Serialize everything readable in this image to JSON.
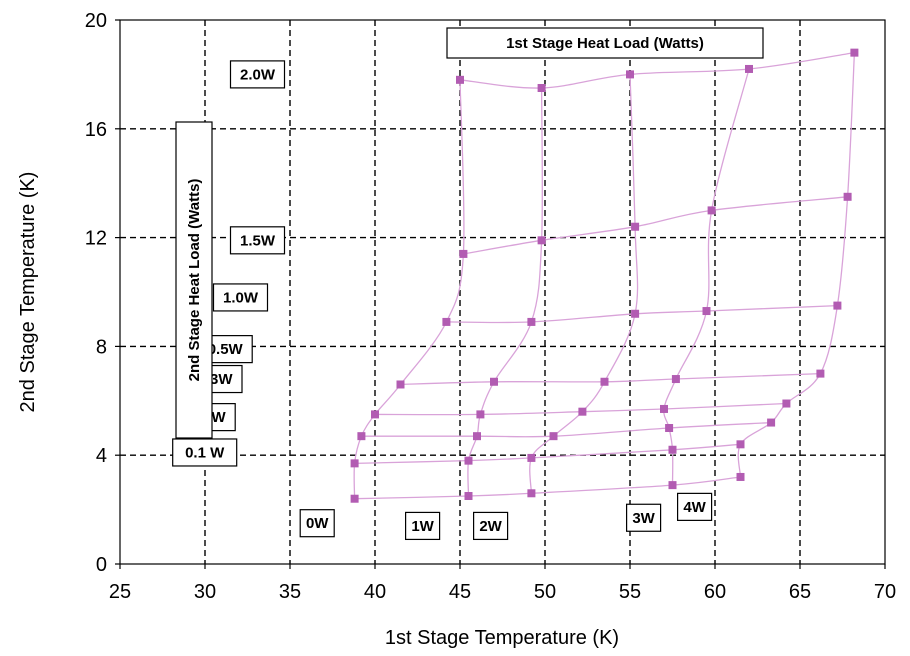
{
  "chart_data": {
    "type": "line",
    "xlabel": "1st Stage Temperature (K)",
    "ylabel": "2nd Stage Temperature (K)",
    "xlim": [
      25,
      70
    ],
    "ylim": [
      0,
      20
    ],
    "xticks": [
      25,
      30,
      35,
      40,
      45,
      50,
      55,
      60,
      65,
      70
    ],
    "yticks": [
      0,
      4,
      8,
      12,
      16,
      20
    ],
    "grid": true,
    "colors": {
      "line": "#d9a3d9",
      "marker": "#b25cb2",
      "grid": "#000000"
    },
    "first_stage_group_label": "1st Stage Heat Load (Watts)",
    "second_stage_group_label": "2nd Stage Heat Load (Watts)",
    "second_stage_curves": [
      {
        "name": "0W",
        "points": [
          [
            38.8,
            2.4
          ],
          [
            45.5,
            2.5
          ],
          [
            49.2,
            2.6
          ],
          [
            57.5,
            2.9
          ],
          [
            61.5,
            3.2
          ]
        ]
      },
      {
        "name": "0.1 W",
        "points": [
          [
            38.8,
            3.7
          ],
          [
            45.5,
            3.8
          ],
          [
            49.2,
            3.9
          ],
          [
            57.5,
            4.2
          ],
          [
            61.5,
            4.4
          ]
        ]
      },
      {
        "name": "0.2W",
        "points": [
          [
            39.2,
            4.7
          ],
          [
            46.0,
            4.7
          ],
          [
            50.5,
            4.7
          ],
          [
            57.3,
            5.0
          ],
          [
            63.3,
            5.2
          ]
        ]
      },
      {
        "name": "0.3W",
        "points": [
          [
            40.0,
            5.5
          ],
          [
            46.2,
            5.5
          ],
          [
            52.2,
            5.6
          ],
          [
            57.0,
            5.7
          ],
          [
            64.2,
            5.9
          ]
        ]
      },
      {
        "name": "0.5W",
        "points": [
          [
            41.5,
            6.6
          ],
          [
            47.0,
            6.7
          ],
          [
            53.5,
            6.7
          ],
          [
            57.7,
            6.8
          ],
          [
            66.2,
            7.0
          ]
        ]
      },
      {
        "name": "1.0W",
        "points": [
          [
            44.2,
            8.9
          ],
          [
            49.2,
            8.9
          ],
          [
            55.3,
            9.2
          ],
          [
            59.5,
            9.3
          ],
          [
            67.2,
            9.5
          ]
        ]
      },
      {
        "name": "1.5W",
        "points": [
          [
            45.2,
            11.4
          ],
          [
            49.8,
            11.9
          ],
          [
            55.3,
            12.4
          ],
          [
            59.8,
            13.0
          ],
          [
            67.8,
            13.5
          ]
        ]
      },
      {
        "name": "2.0W",
        "points": [
          [
            45.0,
            17.8
          ],
          [
            49.8,
            17.5
          ],
          [
            55.0,
            18.0
          ],
          [
            62.0,
            18.2
          ],
          [
            68.2,
            18.8
          ]
        ]
      }
    ],
    "first_stage_curves": [
      {
        "name": "0W",
        "points": [
          [
            38.8,
            2.4
          ],
          [
            38.8,
            3.7
          ],
          [
            39.2,
            4.7
          ],
          [
            40.0,
            5.5
          ],
          [
            41.5,
            6.6
          ],
          [
            44.2,
            8.9
          ],
          [
            45.2,
            11.4
          ],
          [
            45.0,
            17.8
          ]
        ]
      },
      {
        "name": "1W",
        "points": [
          [
            45.5,
            2.5
          ],
          [
            45.5,
            3.8
          ],
          [
            46.0,
            4.7
          ],
          [
            46.2,
            5.5
          ],
          [
            47.0,
            6.7
          ],
          [
            49.2,
            8.9
          ],
          [
            49.8,
            11.9
          ],
          [
            49.8,
            17.5
          ]
        ]
      },
      {
        "name": "2W",
        "points": [
          [
            49.2,
            2.6
          ],
          [
            49.2,
            3.9
          ],
          [
            50.5,
            4.7
          ],
          [
            52.2,
            5.6
          ],
          [
            53.5,
            6.7
          ],
          [
            55.3,
            9.2
          ],
          [
            55.3,
            12.4
          ],
          [
            55.0,
            18.0
          ]
        ]
      },
      {
        "name": "3W",
        "points": [
          [
            57.5,
            2.9
          ],
          [
            57.5,
            4.2
          ],
          [
            57.3,
            5.0
          ],
          [
            57.0,
            5.7
          ],
          [
            57.7,
            6.8
          ],
          [
            59.5,
            9.3
          ],
          [
            59.8,
            13.0
          ],
          [
            62.0,
            18.2
          ]
        ]
      },
      {
        "name": "4W",
        "points": [
          [
            61.5,
            3.2
          ],
          [
            61.5,
            4.4
          ],
          [
            63.3,
            5.2
          ],
          [
            64.2,
            5.9
          ],
          [
            66.2,
            7.0
          ],
          [
            67.2,
            9.5
          ],
          [
            67.8,
            13.5
          ],
          [
            68.2,
            18.8
          ]
        ]
      }
    ],
    "annotations": [
      {
        "text": "2.0W",
        "x": 31.5,
        "y": 18.0
      },
      {
        "text": "1.5W",
        "x": 31.5,
        "y": 11.9
      },
      {
        "text": "1.0W",
        "x": 30.5,
        "y": 9.8
      },
      {
        "text": "0.5W",
        "x": 29.6,
        "y": 7.9
      },
      {
        "text": "0.3W",
        "x": 29.0,
        "y": 6.8
      },
      {
        "text": "0.2W",
        "x": 28.6,
        "y": 5.4
      },
      {
        "text": "0.1 W",
        "x": 28.1,
        "y": 4.1
      },
      {
        "text": "0W",
        "x": 35.6,
        "y": 1.5
      },
      {
        "text": "1W",
        "x": 41.8,
        "y": 1.4
      },
      {
        "text": "2W",
        "x": 45.8,
        "y": 1.4
      },
      {
        "text": "3W",
        "x": 54.8,
        "y": 1.7
      },
      {
        "text": "4W",
        "x": 57.8,
        "y": 2.1
      }
    ]
  }
}
